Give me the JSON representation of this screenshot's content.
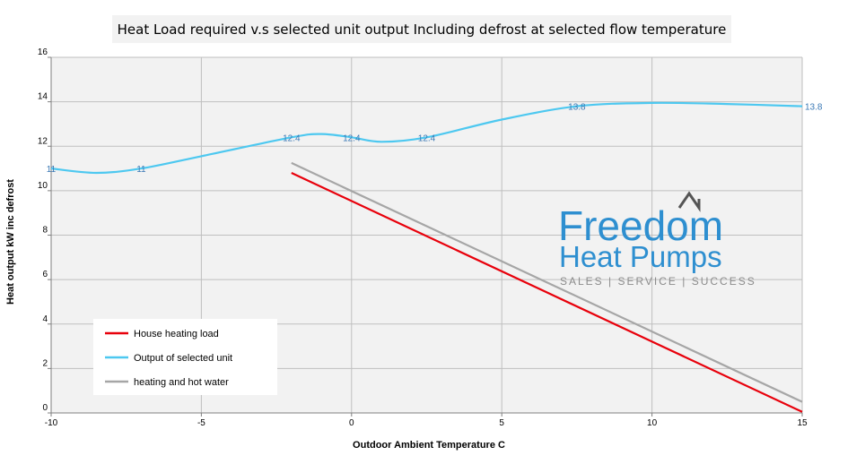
{
  "chart_data": {
    "type": "line",
    "title": "Heat Load required v.s selected unit output Including defrost at selected flow temperature",
    "xlabel": "Outdoor Ambient Temperature C",
    "ylabel": "Heat output kW inc defrost",
    "xlim": [
      -10,
      15
    ],
    "ylim": [
      0,
      16
    ],
    "x_ticks": [
      -10,
      -5,
      0,
      5,
      10,
      15
    ],
    "y_ticks": [
      0,
      2,
      4,
      6,
      8,
      10,
      12,
      14,
      16
    ],
    "grid": true,
    "legend_position": "bottom-left",
    "series": [
      {
        "name": "House heating load",
        "color": "#e8000b",
        "points": [
          [
            -2,
            10.8
          ],
          [
            15,
            0.05
          ]
        ],
        "labels": []
      },
      {
        "name": "Output of selected unit",
        "color": "#4dc8f0",
        "points": [
          [
            -10,
            11
          ],
          [
            -8.5,
            10.8
          ],
          [
            -7,
            11
          ],
          [
            -5,
            11.55
          ],
          [
            -2,
            12.4
          ],
          [
            -1,
            12.55
          ],
          [
            0,
            12.4
          ],
          [
            1,
            12.2
          ],
          [
            2.5,
            12.4
          ],
          [
            5,
            13.2
          ],
          [
            7.5,
            13.8
          ],
          [
            10,
            13.95
          ],
          [
            12.5,
            13.9
          ],
          [
            15,
            13.8
          ]
        ],
        "labels": [
          {
            "x": -10,
            "y": 11,
            "text": "11"
          },
          {
            "x": -7,
            "y": 11,
            "text": "11"
          },
          {
            "x": -2,
            "y": 12.4,
            "text": "12.4"
          },
          {
            "x": 0,
            "y": 12.4,
            "text": "12.4"
          },
          {
            "x": 2.5,
            "y": 12.4,
            "text": "12.4"
          },
          {
            "x": 7.5,
            "y": 13.8,
            "text": "13.8"
          },
          {
            "x": 15,
            "y": 13.8,
            "text": "13.8"
          }
        ]
      },
      {
        "name": "heating and hot water",
        "color": "#a6a6a6",
        "points": [
          [
            -2,
            11.25
          ],
          [
            15,
            0.5
          ]
        ],
        "labels": []
      }
    ]
  },
  "brand": {
    "line1": "Freedom",
    "line2": "Heat Pumps",
    "tagline": "SALES | SERVICE | SUCCESS",
    "color": "#2e8fd0"
  }
}
